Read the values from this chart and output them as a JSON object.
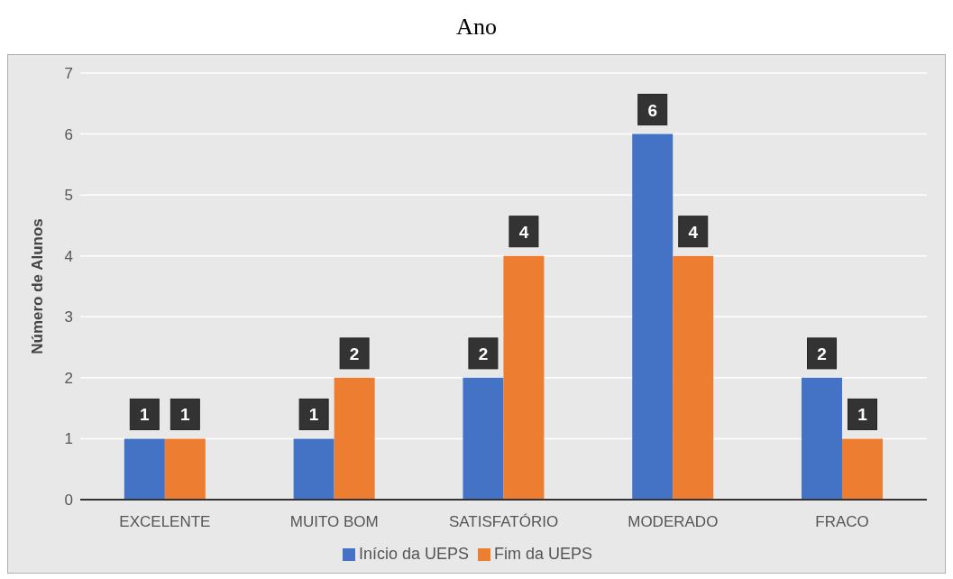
{
  "chart_data": {
    "type": "bar",
    "title": "Ano",
    "ylabel": "Número de Alunos",
    "categories": [
      "EXCELENTE",
      "MUITO BOM",
      "SATISFATÓRIO",
      "MODERADO",
      "FRACO"
    ],
    "series": [
      {
        "name": "Início da UEPS",
        "color": "#4472c4",
        "values": [
          1,
          1,
          2,
          6,
          2
        ]
      },
      {
        "name": "Fim da UEPS",
        "color": "#ed7d31",
        "values": [
          1,
          2,
          4,
          4,
          1
        ]
      }
    ],
    "ylim": [
      0,
      7
    ],
    "yticks": [
      0,
      1,
      2,
      3,
      4,
      5,
      6,
      7
    ],
    "grid": "y",
    "legend": "bottom",
    "data_labels": true
  }
}
